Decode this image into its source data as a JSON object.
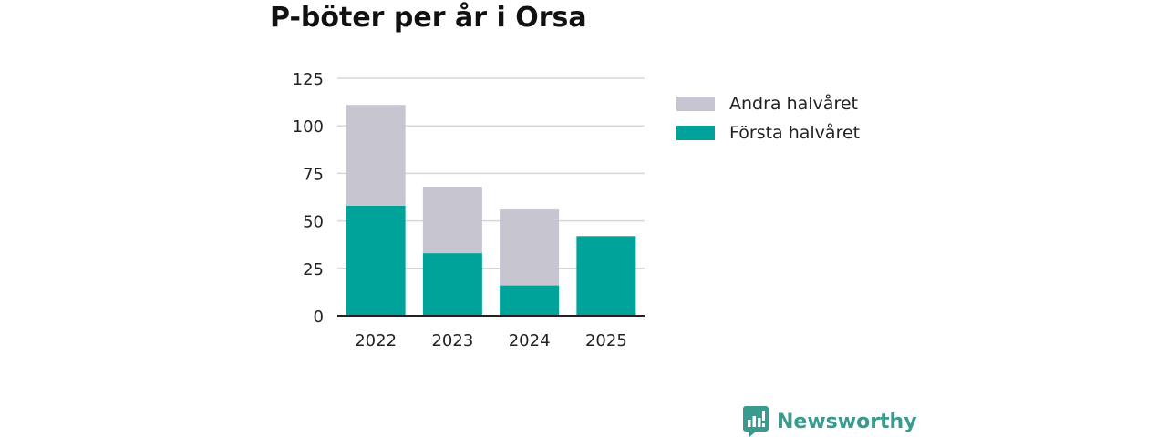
{
  "chart_data": {
    "type": "bar",
    "stacked": true,
    "title": "P-böter per år i Orsa",
    "categories": [
      "2022",
      "2023",
      "2024",
      "2025"
    ],
    "series": [
      {
        "name": "Första halvåret",
        "values": [
          58,
          33,
          16,
          42
        ],
        "color": "#00a39a"
      },
      {
        "name": "Andra halvåret",
        "values": [
          53,
          35,
          40,
          0
        ],
        "color": "#c6c5d0"
      }
    ],
    "ylim": [
      0,
      125
    ],
    "yticks": [
      "0",
      "25",
      "50",
      "75",
      "100",
      "125"
    ],
    "xlabel": "",
    "ylabel": "",
    "grid": true,
    "legend_position": "right",
    "legend_order": [
      "Andra halvåret",
      "Första halvåret"
    ]
  },
  "branding": {
    "name": "Newsworthy",
    "color": "#3a9a8e"
  },
  "colors": {
    "grid": "#d7d7d7",
    "axis": "#222222"
  }
}
